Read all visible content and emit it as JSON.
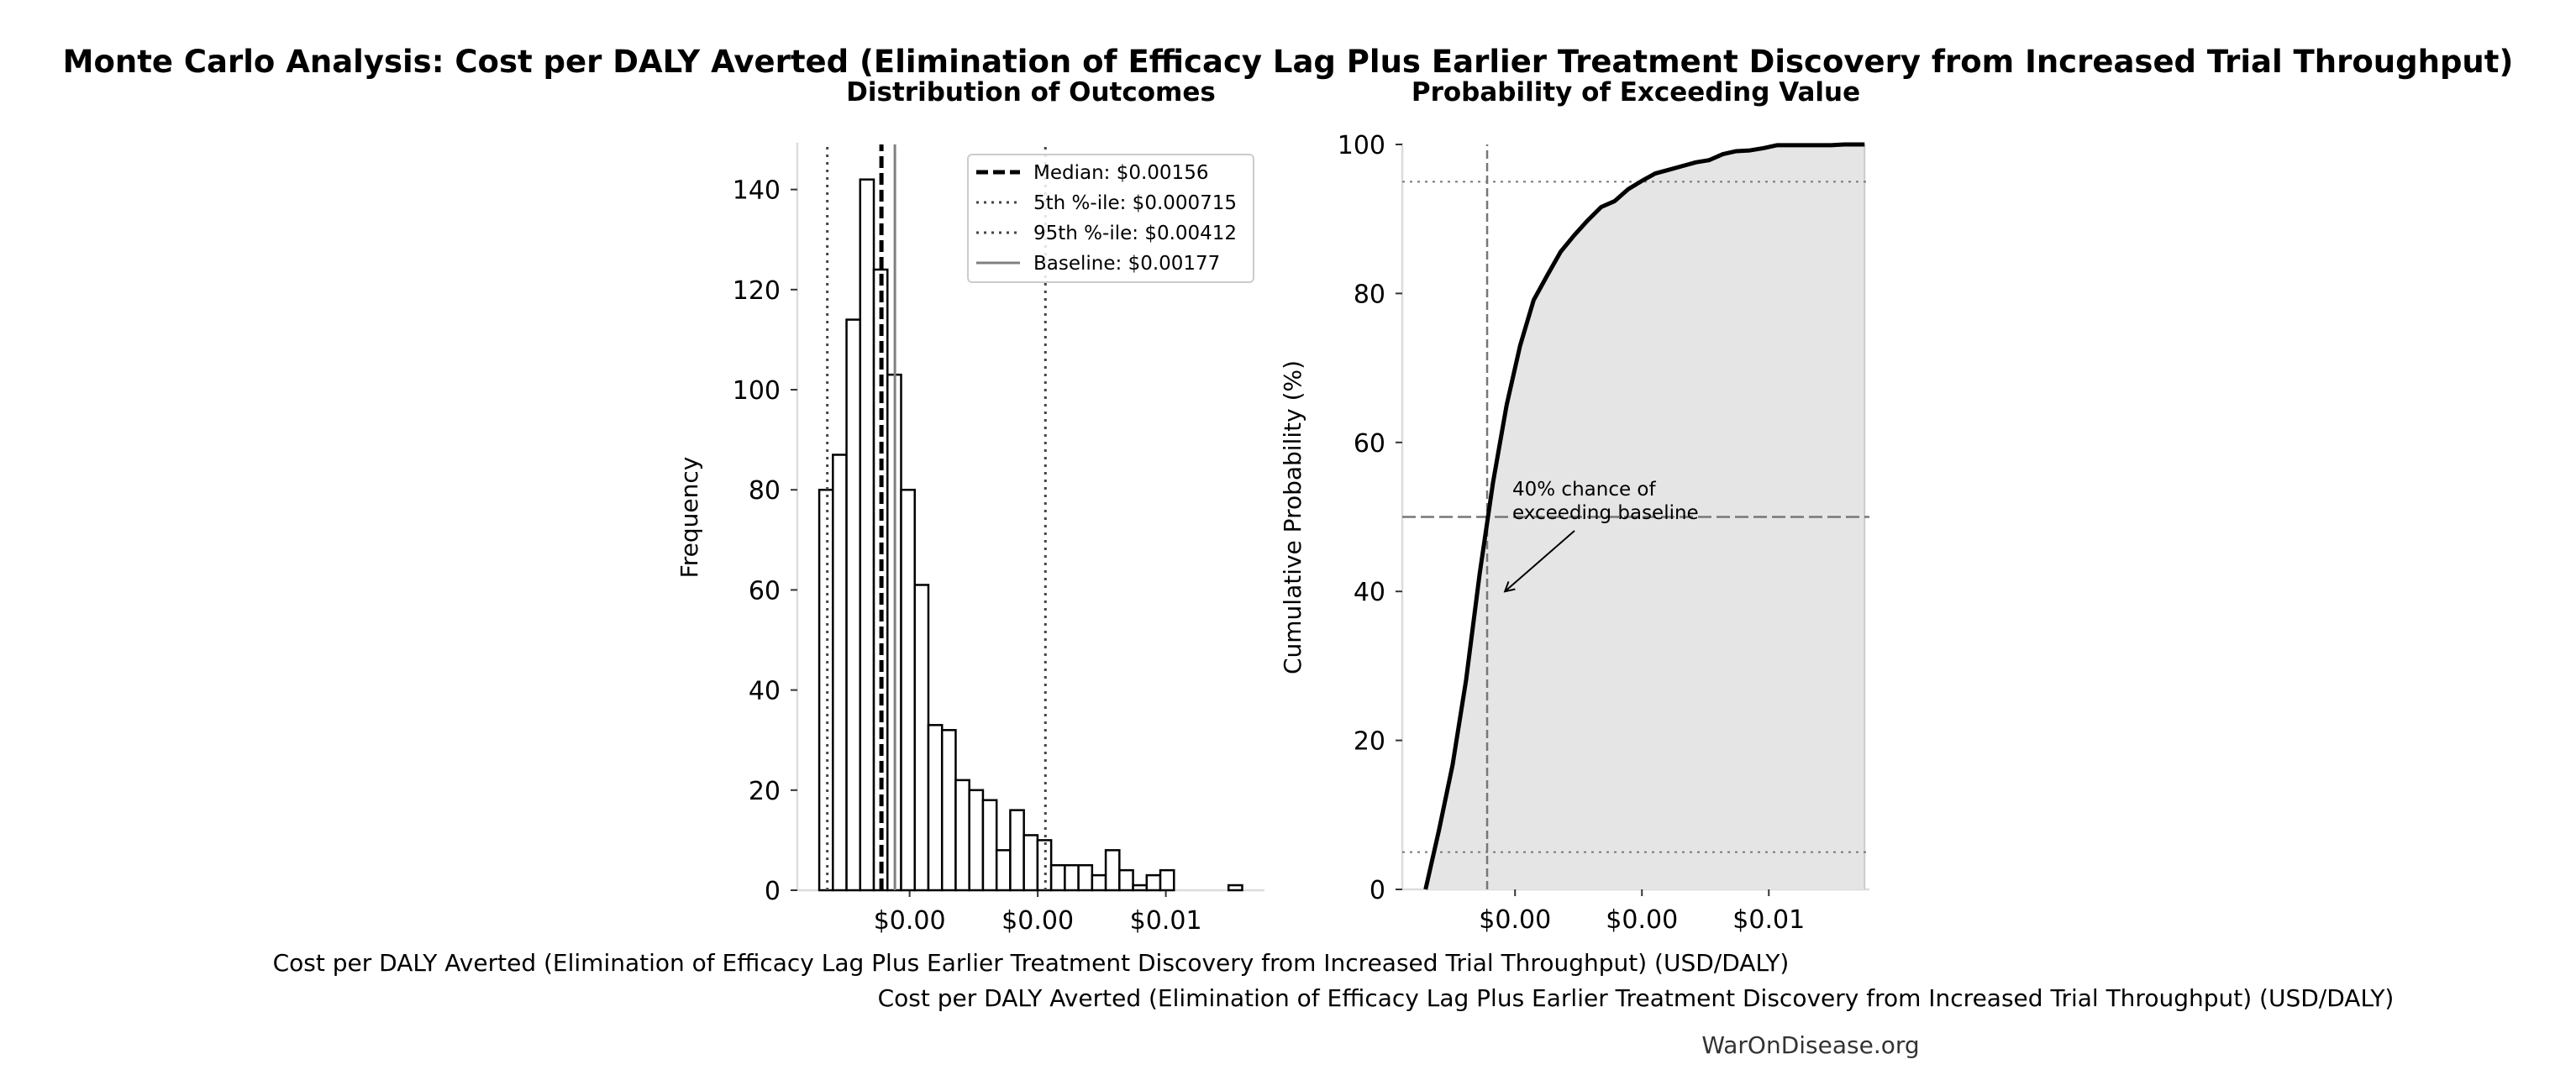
{
  "figure": {
    "title": "Monte Carlo Analysis: Cost per DALY Averted (Elimination of Efficacy Lag Plus Earlier Treatment Discovery from Increased Trial Throughput)",
    "credit": "WarOnDisease.org"
  },
  "chart_data": [
    {
      "type": "bar",
      "subtitle": "Distribution of Outcomes",
      "xlabel": "Cost per DALY Averted (Elimination of Efficacy Lag Plus Earlier Treatment Discovery from Increased Trial Throughput) (USD/DALY)",
      "ylabel": "Frequency",
      "xlim": [
        0.000247,
        0.00754
      ],
      "ylim": [
        0,
        149
      ],
      "xticks": [
        0.002,
        0.004,
        0.006
      ],
      "xtick_labels": [
        "$0.00",
        "$0.00",
        "$0.01"
      ],
      "yticks": [
        0,
        20,
        40,
        60,
        80,
        100,
        120,
        140
      ],
      "bin_start": 0.000589,
      "bin_width": 0.000213,
      "counts": [
        80,
        87,
        114,
        142,
        124,
        103,
        80,
        61,
        33,
        32,
        22,
        20,
        18,
        8,
        16,
        11,
        10,
        5,
        5,
        5,
        3,
        8,
        4,
        1,
        3,
        4,
        0,
        0,
        0,
        0,
        1
      ],
      "reference_lines": [
        {
          "label": "Median: $0.00156",
          "value": 0.00156,
          "style": "dashed",
          "color": "#000000"
        },
        {
          "label": "5th %-ile: $0.000715",
          "value": 0.000715,
          "style": "dotted",
          "color": "#444444"
        },
        {
          "label": "95th %-ile: $0.00412",
          "value": 0.00412,
          "style": "dotted",
          "color": "#444444"
        },
        {
          "label": "Baseline: $0.00177",
          "value": 0.00177,
          "style": "solid",
          "color": "#808080"
        }
      ],
      "legend_position": "upper-right",
      "grid": false
    },
    {
      "type": "line",
      "subtitle": "Probability of Exceeding Value",
      "xlabel": "Cost per DALY Averted (Elimination of Efficacy Lag Plus Earlier Treatment Discovery from Increased Trial Throughput) (USD/DALY)",
      "ylabel": "Cumulative Probability (%)",
      "xlim": [
        0.000222,
        0.007586
      ],
      "ylim": [
        0,
        100
      ],
      "xticks": [
        0.002,
        0.004,
        0.006
      ],
      "xtick_labels": [
        "$0.00",
        "$0.00",
        "$0.01"
      ],
      "yticks": [
        0,
        20,
        40,
        60,
        80,
        100
      ],
      "cdf": [
        [
          0.000589,
          0
        ],
        [
          0.000802,
          8.0
        ],
        [
          0.001015,
          16.7
        ],
        [
          0.001228,
          28.1
        ],
        [
          0.001441,
          42.3
        ],
        [
          0.001654,
          54.7
        ],
        [
          0.001867,
          65.0
        ],
        [
          0.00208,
          73.0
        ],
        [
          0.002293,
          79.1
        ],
        [
          0.002506,
          82.4
        ],
        [
          0.002719,
          85.6
        ],
        [
          0.002932,
          87.8
        ],
        [
          0.003145,
          89.8
        ],
        [
          0.003358,
          91.6
        ],
        [
          0.003571,
          92.4
        ],
        [
          0.003784,
          94.0
        ],
        [
          0.003997,
          95.1
        ],
        [
          0.00421,
          96.1
        ],
        [
          0.004423,
          96.6
        ],
        [
          0.004636,
          97.1
        ],
        [
          0.004849,
          97.6
        ],
        [
          0.005062,
          97.9
        ],
        [
          0.005275,
          98.7
        ],
        [
          0.005488,
          99.1
        ],
        [
          0.005701,
          99.2
        ],
        [
          0.005914,
          99.5
        ],
        [
          0.006127,
          99.9
        ],
        [
          0.00698,
          99.9
        ],
        [
          0.007193,
          100
        ],
        [
          0.00751,
          100
        ]
      ],
      "fill_color": "#e5e5e5",
      "hlines": [
        {
          "value": 5,
          "style": "dotted"
        },
        {
          "value": 95,
          "style": "dotted"
        },
        {
          "value": 50,
          "style": "dashed"
        }
      ],
      "vline": {
        "value": 0.00156,
        "style": "dashed"
      },
      "annotation": {
        "lines": [
          "40% chance of",
          "exceeding baseline"
        ],
        "arrow_to": [
          0.00184,
          40
        ]
      },
      "grid": false
    }
  ]
}
